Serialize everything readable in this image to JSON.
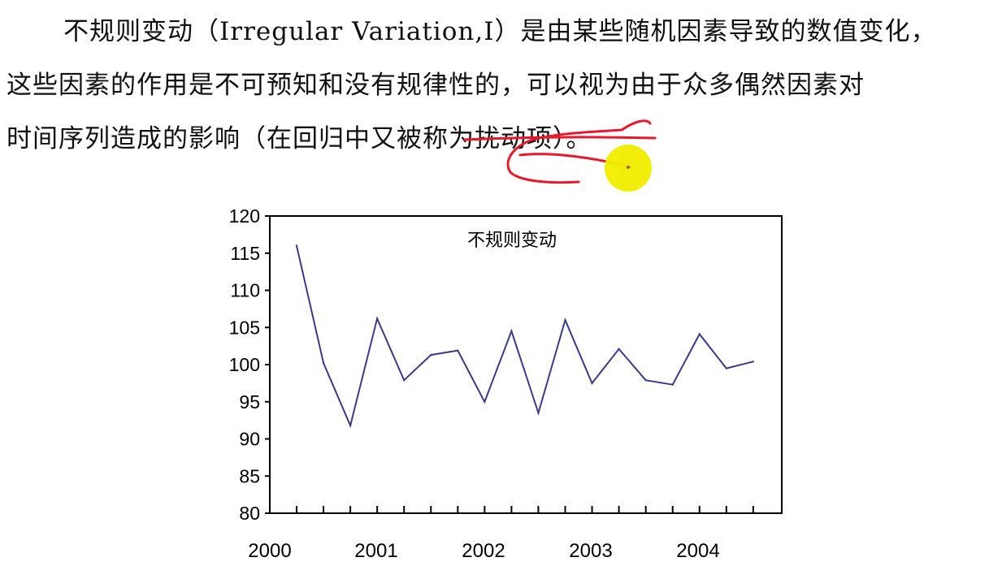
{
  "paragraph": {
    "lines": [
      "不规则变动（Irregular Variation,I）是由某些随机因素导致的数值变化，",
      "这些因素的作用是不可预知和没有规律性的，可以视为由于众多偶然因素对",
      "时间序列造成的影响（在回归中又被称为扰动项）。"
    ]
  },
  "colors": {
    "series_line": "#3a3a8c",
    "axis": "#000000",
    "annotation_ink": "#e8192c",
    "pointer": "#f2ee00"
  },
  "chart_data": {
    "type": "line",
    "title": "不规则变动",
    "xlabel": "",
    "ylabel": "",
    "ylim": [
      80,
      120
    ],
    "yticks": [
      "80",
      "85",
      "90",
      "95",
      "100",
      "105",
      "110",
      "115",
      "120"
    ],
    "xtick_labels": [
      "2000",
      "2001",
      "2002",
      "2003",
      "2004"
    ],
    "grid": false,
    "legend": "none",
    "series": [
      {
        "values": [
          116,
          100.2,
          91.8,
          106.2,
          97.9,
          101.3,
          101.9,
          95,
          104.5,
          93.5,
          106,
          97.5,
          102.1,
          97.9,
          97.3,
          104.1,
          99.5,
          100.4
        ]
      }
    ]
  }
}
